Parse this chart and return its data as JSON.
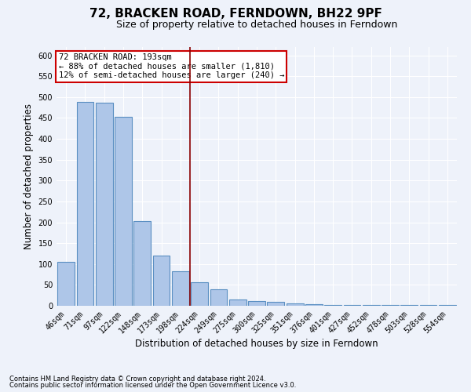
{
  "title": "72, BRACKEN ROAD, FERNDOWN, BH22 9PF",
  "subtitle": "Size of property relative to detached houses in Ferndown",
  "xlabel": "Distribution of detached houses by size in Ferndown",
  "ylabel": "Number of detached properties",
  "categories": [
    "46sqm",
    "71sqm",
    "97sqm",
    "122sqm",
    "148sqm",
    "173sqm",
    "198sqm",
    "224sqm",
    "249sqm",
    "275sqm",
    "300sqm",
    "325sqm",
    "351sqm",
    "376sqm",
    "401sqm",
    "427sqm",
    "452sqm",
    "478sqm",
    "503sqm",
    "528sqm",
    "554sqm"
  ],
  "values": [
    105,
    488,
    487,
    453,
    202,
    120,
    83,
    57,
    40,
    15,
    11,
    10,
    5,
    3,
    2,
    2,
    2,
    1,
    1,
    1,
    1
  ],
  "bar_color": "#aec6e8",
  "bar_edge_color": "#5a8fc2",
  "red_line_x": 6.5,
  "annotation_text": "72 BRACKEN ROAD: 193sqm\n← 88% of detached houses are smaller (1,810)\n12% of semi-detached houses are larger (240) →",
  "annotation_box_color": "#ffffff",
  "annotation_box_edge_color": "#cc0000",
  "footer_line1": "Contains HM Land Registry data © Crown copyright and database right 2024.",
  "footer_line2": "Contains public sector information licensed under the Open Government Licence v3.0.",
  "ylim": [
    0,
    620
  ],
  "yticks": [
    0,
    50,
    100,
    150,
    200,
    250,
    300,
    350,
    400,
    450,
    500,
    550,
    600
  ],
  "background_color": "#eef2fa",
  "grid_color": "#ffffff",
  "title_fontsize": 11,
  "subtitle_fontsize": 9,
  "tick_fontsize": 7,
  "ylabel_fontsize": 8.5,
  "xlabel_fontsize": 8.5
}
